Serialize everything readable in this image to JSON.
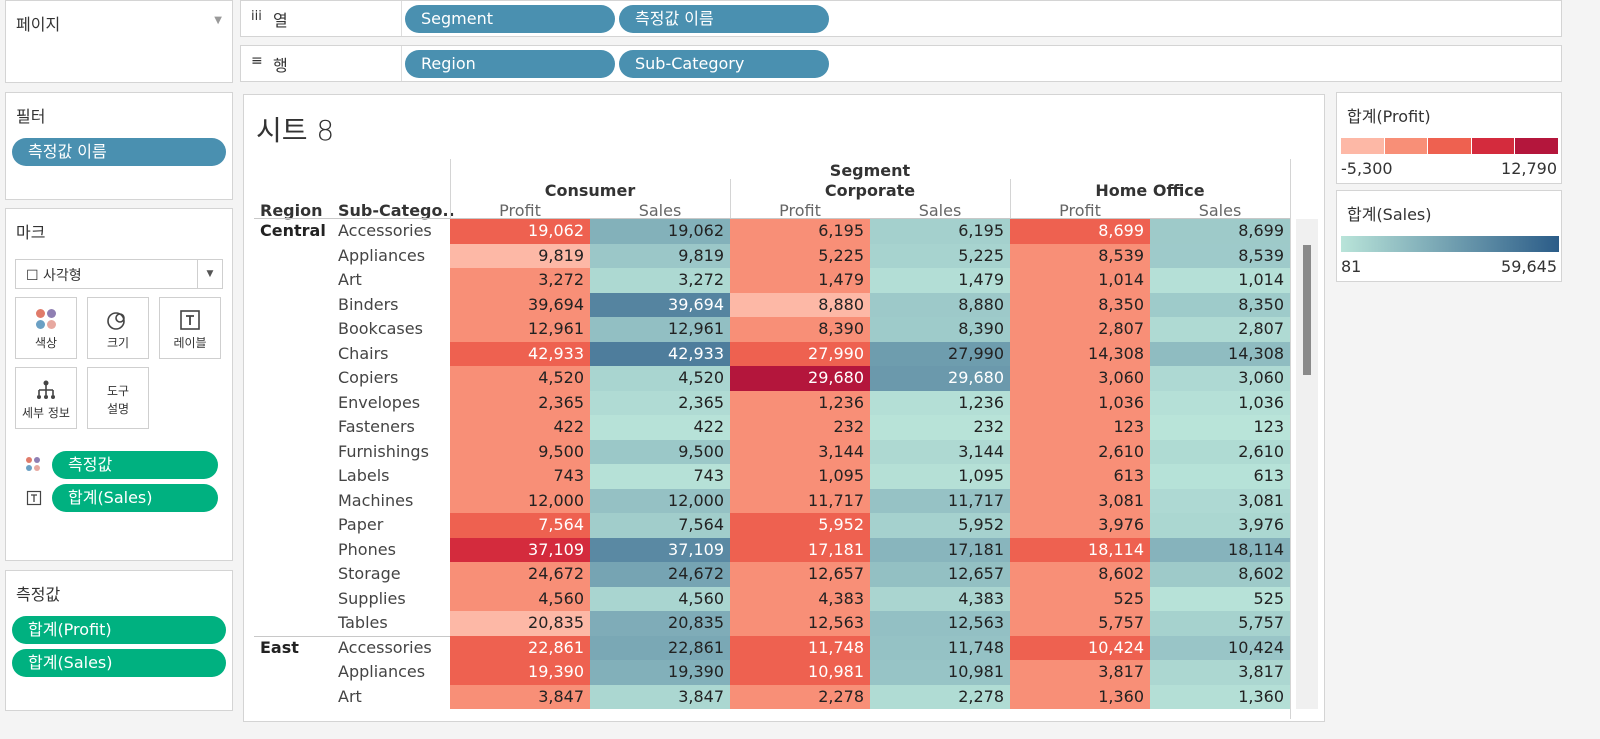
{
  "pages": {
    "title": "페이지"
  },
  "shelves": {
    "columns": {
      "icon": "iii",
      "label": "열",
      "pills": [
        "Segment",
        "측정값 이름"
      ]
    },
    "rows": {
      "icon": "≡",
      "label": "행",
      "pills": [
        "Region",
        "Sub-Category"
      ]
    }
  },
  "filters": {
    "title": "필터",
    "pills": [
      "측정값 이름"
    ]
  },
  "marks": {
    "title": "마크",
    "mark_type": "☐ 사각형",
    "cards": [
      {
        "label": "색상",
        "icon": "color-icon"
      },
      {
        "label": "크기",
        "icon": "size-icon"
      },
      {
        "label": "레이블",
        "icon": "label-icon"
      },
      {
        "label": "세부 정보",
        "icon": "detail-icon"
      },
      {
        "label": "도구\n설명",
        "icon": "tooltip-icon"
      }
    ],
    "encodings": [
      {
        "icon": "color-icon",
        "pill": "측정값"
      },
      {
        "icon": "label-icon",
        "pill": "합계(Sales)"
      }
    ]
  },
  "measure_values": {
    "title": "측정값",
    "pills": [
      "합계(Profit)",
      "합계(Sales)"
    ]
  },
  "sheet": {
    "title": "시트 8",
    "segment_header": "Segment",
    "region_header": "Region",
    "subcat_header": "Sub-Catego..",
    "segments": [
      "Consumer",
      "Corporate",
      "Home Office"
    ],
    "measures": [
      "Profit",
      "Sales"
    ]
  },
  "table": {
    "rows": [
      {
        "region": "Central",
        "sub": "Accessories",
        "c": "19,062",
        "co": "6,195",
        "h": "8,699"
      },
      {
        "region": "",
        "sub": "Appliances",
        "c": "9,819",
        "co": "5,225",
        "h": "8,539"
      },
      {
        "region": "",
        "sub": "Art",
        "c": "3,272",
        "co": "1,479",
        "h": "1,014"
      },
      {
        "region": "",
        "sub": "Binders",
        "c": "39,694",
        "co": "8,880",
        "h": "8,350"
      },
      {
        "region": "",
        "sub": "Bookcases",
        "c": "12,961",
        "co": "8,390",
        "h": "2,807"
      },
      {
        "region": "",
        "sub": "Chairs",
        "c": "42,933",
        "co": "27,990",
        "h": "14,308"
      },
      {
        "region": "",
        "sub": "Copiers",
        "c": "4,520",
        "co": "29,680",
        "h": "3,060"
      },
      {
        "region": "",
        "sub": "Envelopes",
        "c": "2,365",
        "co": "1,236",
        "h": "1,036"
      },
      {
        "region": "",
        "sub": "Fasteners",
        "c": "422",
        "co": "232",
        "h": "123"
      },
      {
        "region": "",
        "sub": "Furnishings",
        "c": "9,500",
        "co": "3,144",
        "h": "2,610"
      },
      {
        "region": "",
        "sub": "Labels",
        "c": "743",
        "co": "1,095",
        "h": "613"
      },
      {
        "region": "",
        "sub": "Machines",
        "c": "12,000",
        "co": "11,717",
        "h": "3,081"
      },
      {
        "region": "",
        "sub": "Paper",
        "c": "7,564",
        "co": "5,952",
        "h": "3,976"
      },
      {
        "region": "",
        "sub": "Phones",
        "c": "37,109",
        "co": "17,181",
        "h": "18,114"
      },
      {
        "region": "",
        "sub": "Storage",
        "c": "24,672",
        "co": "12,657",
        "h": "8,602"
      },
      {
        "region": "",
        "sub": "Supplies",
        "c": "4,560",
        "co": "4,383",
        "h": "525"
      },
      {
        "region": "",
        "sub": "Tables",
        "c": "20,835",
        "co": "12,563",
        "h": "5,757"
      },
      {
        "region": "East",
        "sub": "Accessories",
        "c": "22,861",
        "co": "11,748",
        "h": "10,424"
      },
      {
        "region": "",
        "sub": "Appliances",
        "c": "19,390",
        "co": "10,981",
        "h": "3,817"
      },
      {
        "region": "",
        "sub": "Art",
        "c": "3,847",
        "co": "2,278",
        "h": "1,360"
      }
    ],
    "profit_colors": [
      [
        "#ee6150",
        "#f88f77",
        "#ee6150"
      ],
      [
        "#fdb8a6",
        "#f88f77",
        "#f88f77"
      ],
      [
        "#f88f77",
        "#f88f77",
        "#f88f77"
      ],
      [
        "#f88f77",
        "#fdb8a6",
        "#f88f77"
      ],
      [
        "#f88f77",
        "#f88f77",
        "#f88f77"
      ],
      [
        "#ee6150",
        "#ee6150",
        "#f88f77"
      ],
      [
        "#f88f77",
        "#b4163c",
        "#f88f77"
      ],
      [
        "#f88f77",
        "#f88f77",
        "#f88f77"
      ],
      [
        "#f88f77",
        "#f88f77",
        "#f88f77"
      ],
      [
        "#f88f77",
        "#f88f77",
        "#f88f77"
      ],
      [
        "#f88f77",
        "#f88f77",
        "#f88f77"
      ],
      [
        "#f88f77",
        "#f88f77",
        "#f88f77"
      ],
      [
        "#ee6150",
        "#ee6150",
        "#f88f77"
      ],
      [
        "#d42b3d",
        "#ee6150",
        "#ee6150"
      ],
      [
        "#f88f77",
        "#f88f77",
        "#f88f77"
      ],
      [
        "#f88f77",
        "#f88f77",
        "#f88f77"
      ],
      [
        "#fdb8a6",
        "#f88f77",
        "#f88f77"
      ],
      [
        "#ee6150",
        "#ee6150",
        "#ee6150"
      ],
      [
        "#ee6150",
        "#ee6150",
        "#f88f77"
      ],
      [
        "#f88f77",
        "#f88f77",
        "#f88f77"
      ]
    ],
    "sales_min": 81,
    "sales_max": 59645
  },
  "legends": {
    "profit": {
      "title": "합계(Profit)",
      "min": "-5,300",
      "max": "12,790",
      "colors": [
        "#fdb8a6",
        "#f88f77",
        "#ee6150",
        "#d42b3d",
        "#b4163c"
      ]
    },
    "sales": {
      "title": "합계(Sales)",
      "min": "81",
      "max": "59,645",
      "colors": [
        "#b9e4d9",
        "#2b5c88"
      ]
    }
  }
}
